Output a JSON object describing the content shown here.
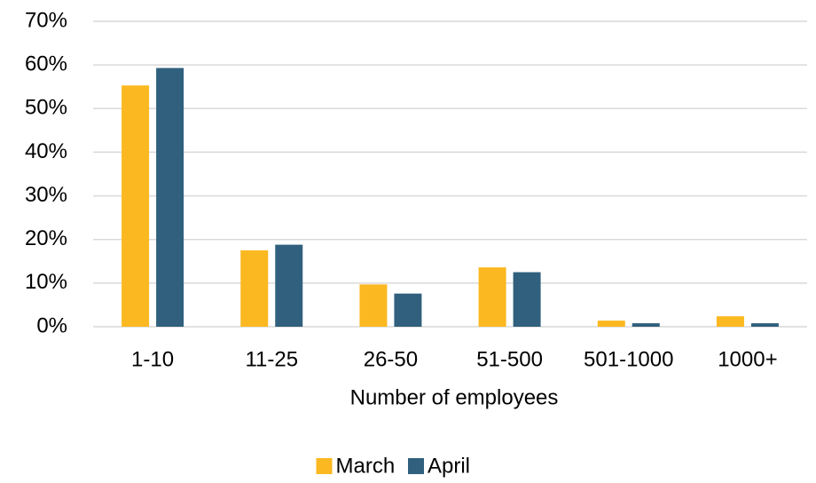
{
  "chart_data": {
    "type": "bar",
    "x_label": "Number of employees",
    "categories": [
      "1-10",
      "11-25",
      "26-50",
      "51-500",
      "501-1000",
      "1000+"
    ],
    "series": [
      {
        "name": "March",
        "color": "#fbb820",
        "values": [
          55.3,
          17.5,
          9.7,
          13.6,
          1.4,
          2.4
        ]
      },
      {
        "name": "April",
        "color": "#30607d",
        "values": [
          59.3,
          18.8,
          7.6,
          12.5,
          0.8,
          0.8
        ]
      }
    ],
    "ylim": [
      0,
      70
    ],
    "yticks": [
      {
        "value": 0,
        "label": "0%"
      },
      {
        "value": 10,
        "label": "10%"
      },
      {
        "value": 20,
        "label": "20%"
      },
      {
        "value": 30,
        "label": "30%"
      },
      {
        "value": 40,
        "label": "40%"
      },
      {
        "value": 50,
        "label": "50%"
      },
      {
        "value": 60,
        "label": "60%"
      },
      {
        "value": 70,
        "label": "70%"
      }
    ],
    "grid": true,
    "legend": "bottom"
  }
}
